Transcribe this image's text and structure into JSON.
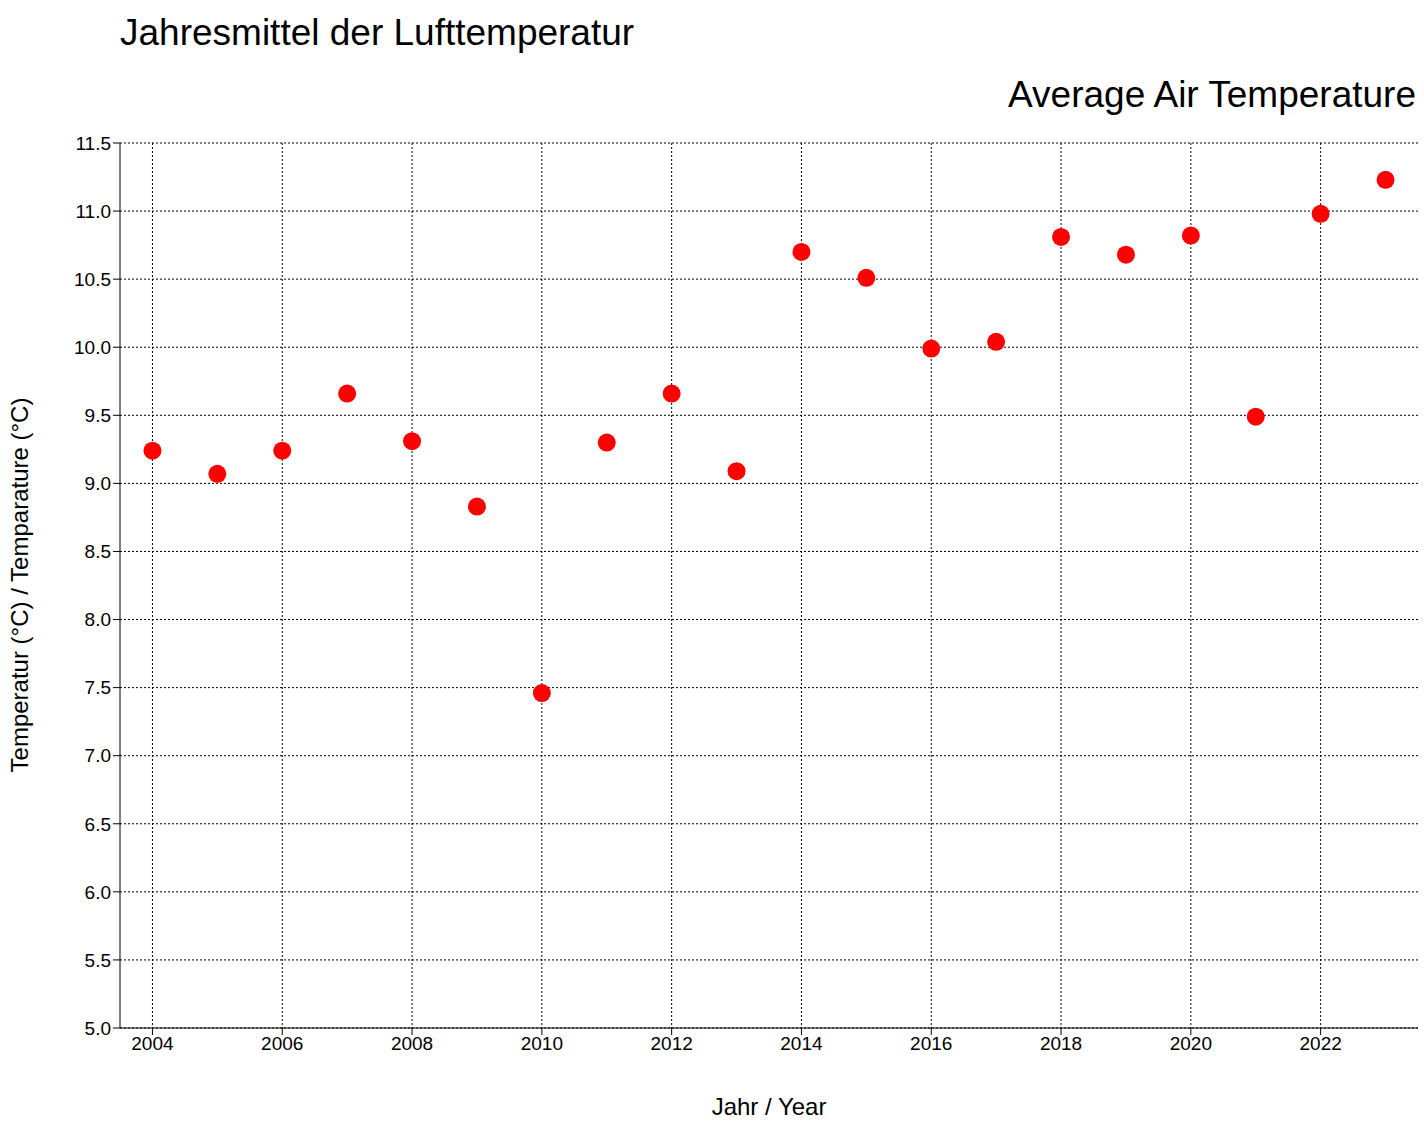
{
  "chart_data": {
    "type": "scatter",
    "title": "Jahresmittel der Lufttemperatur",
    "subtitle": "Average Air Temperature",
    "x_label": "Jahr / Year",
    "y_label": "Temperatur (°C) / Temparature (°C)",
    "x": [
      2004,
      2005,
      2006,
      2007,
      2008,
      2009,
      2010,
      2011,
      2012,
      2013,
      2014,
      2015,
      2016,
      2017,
      2018,
      2019,
      2020,
      2021,
      2022,
      2023
    ],
    "values": [
      9.24,
      9.07,
      9.24,
      9.66,
      9.31,
      8.83,
      7.46,
      9.3,
      9.66,
      9.09,
      10.7,
      10.51,
      9.99,
      10.04,
      10.81,
      10.68,
      10.82,
      9.49,
      10.98,
      11.23
    ],
    "color": "#ff0000",
    "marker": "circle",
    "xlim": [
      2003.5,
      2023.5
    ],
    "ylim": [
      5,
      11.5
    ],
    "xticks": [
      2004,
      2006,
      2008,
      2010,
      2012,
      2014,
      2016,
      2018,
      2020,
      2022
    ],
    "yticks": [
      {
        "value": 5,
        "label": "5.0"
      },
      5.5,
      {
        "value": 6,
        "label": "6.0"
      },
      6.5,
      {
        "value": 7,
        "label": "7.0"
      },
      7.5,
      {
        "value": 8,
        "label": "8.0"
      },
      8.5,
      {
        "value": 9,
        "label": "9.0"
      },
      9.5,
      {
        "value": 10,
        "label": "10.0"
      },
      10.5,
      {
        "value": 11,
        "label": "11.0"
      },
      11.5
    ],
    "grid": true
  }
}
